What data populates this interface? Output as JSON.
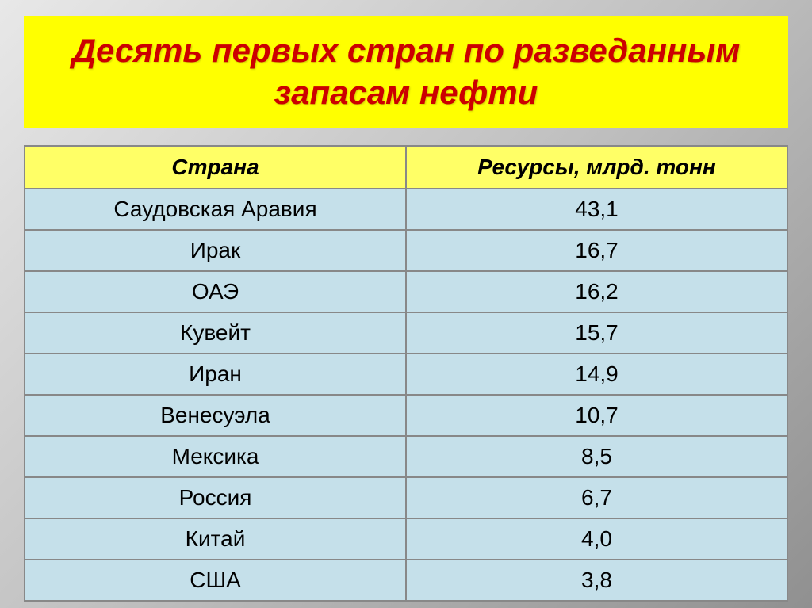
{
  "title": "Десять первых стран по разведанным запасам нефти",
  "table": {
    "columns": [
      "Страна",
      "Ресурсы, млрд. тонн"
    ],
    "rows": [
      [
        "Саудовская Аравия",
        "43,1"
      ],
      [
        "Ирак",
        "16,7"
      ],
      [
        "ОАЭ",
        "16,2"
      ],
      [
        "Кувейт",
        "15,7"
      ],
      [
        "Иран",
        "14,9"
      ],
      [
        "Венесуэла",
        "10,7"
      ],
      [
        "Мексика",
        "8,5"
      ],
      [
        "Россия",
        "6,7"
      ],
      [
        "Китай",
        "4,0"
      ],
      [
        "США",
        "3,8"
      ]
    ],
    "header_bg_color": "#ffff66",
    "cell_bg_color": "#c5e0ea",
    "border_color": "#888888",
    "header_fontsize": 28,
    "cell_fontsize": 28,
    "header_fontstyle": "italic",
    "header_fontweight": "bold"
  },
  "title_style": {
    "bg_color": "#ffff00",
    "text_color": "#cc0000",
    "fontsize": 42,
    "fontweight": "bold",
    "fontstyle": "italic"
  },
  "body_bg": "linear-gradient(135deg, #e8e8e8 0%, #c0c0c0 50%, #909090 100%)"
}
